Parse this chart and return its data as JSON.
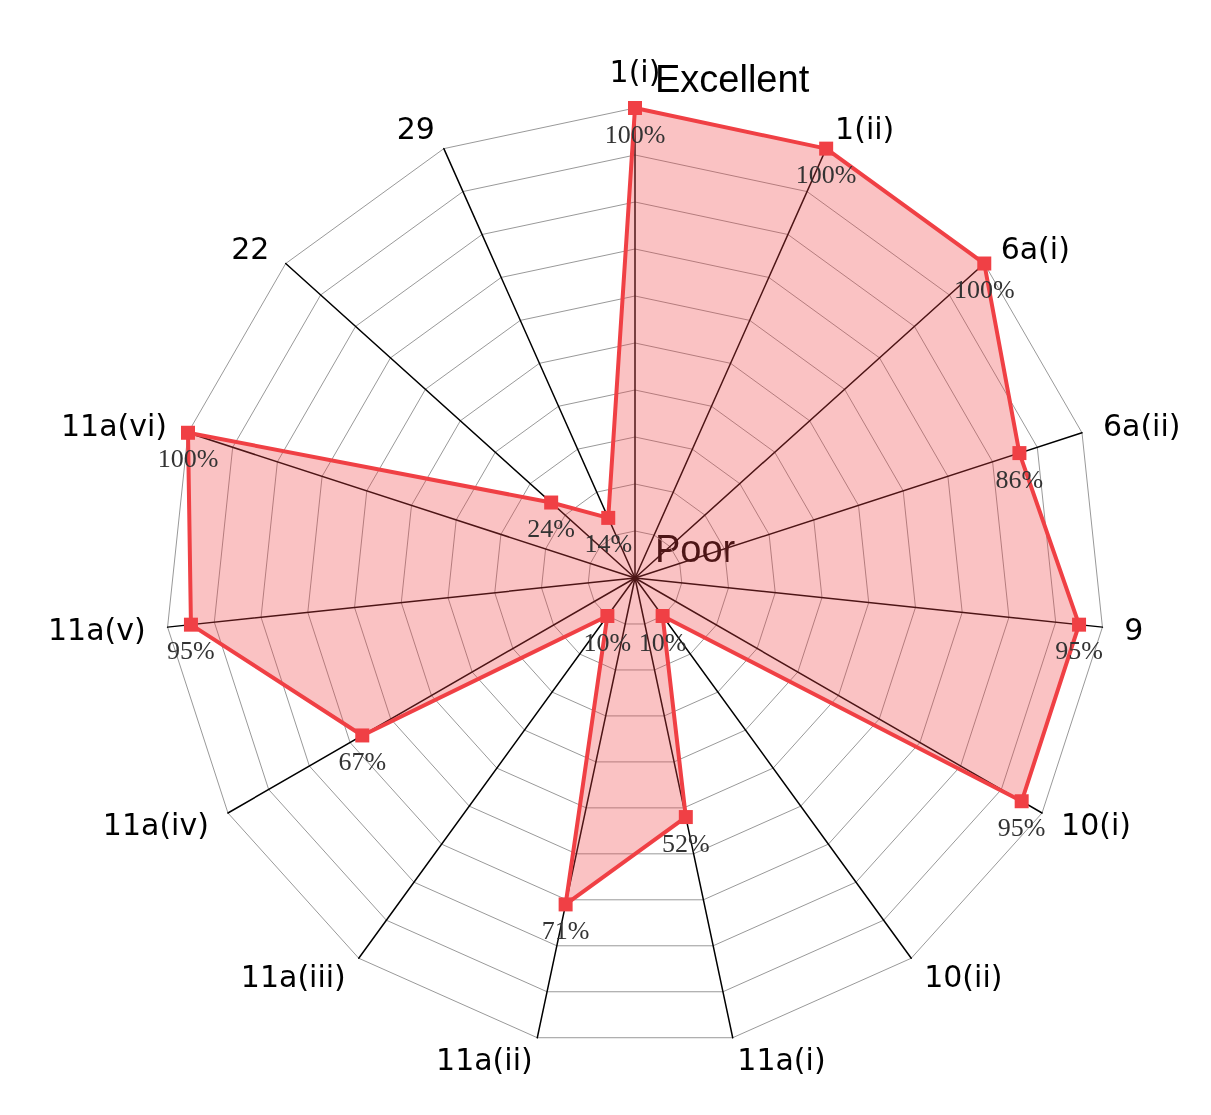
{
  "chart_data": {
    "type": "radar",
    "categories": [
      "1(i)",
      "1(ii)",
      "6a(i)",
      "6a(ii)",
      "9",
      "10(i)",
      "10(ii)",
      "11a(i)",
      "11a(ii)",
      "11a(iii)",
      "11a(iv)",
      "11a(v)",
      "11a(vi)",
      "22",
      "29"
    ],
    "series": [
      {
        "color": "#f04045",
        "values": [
          100,
          100,
          100,
          86,
          95,
          95,
          10,
          52,
          71,
          10,
          67,
          95,
          100,
          24,
          14
        ],
        "value_labels": [
          "100%",
          "100%",
          "100%",
          "86%",
          "95%",
          "95%",
          "10%",
          "52%",
          "71%",
          "10%",
          "67%",
          "95%",
          "100%",
          "24%",
          "14%"
        ]
      }
    ],
    "ylim": [
      0,
      100
    ],
    "yticks": [
      {
        "value": 0,
        "label": "Poor"
      },
      {
        "value": 100,
        "label": "Excellent"
      }
    ],
    "marker": "square"
  }
}
